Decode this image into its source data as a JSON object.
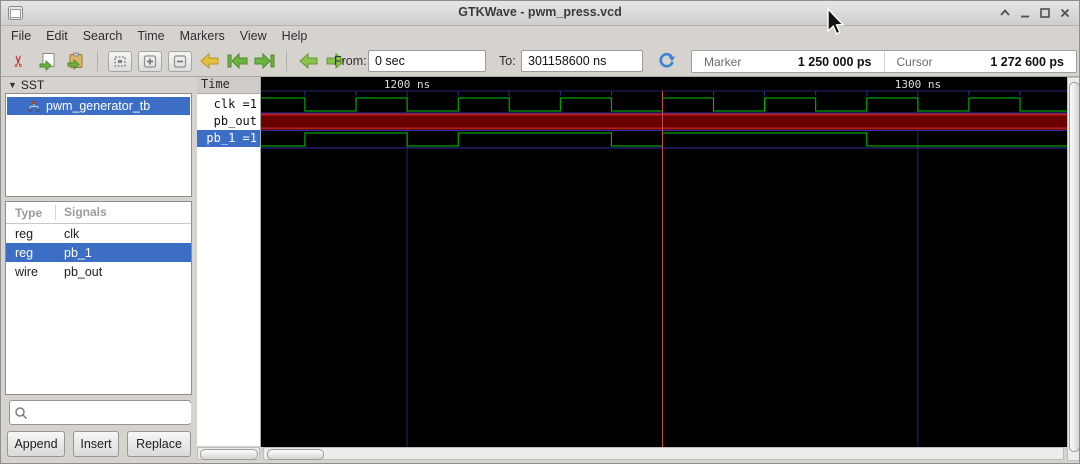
{
  "window": {
    "title": "GTKWave - pwm_press.vcd"
  },
  "menu": {
    "items": [
      "File",
      "Edit",
      "Search",
      "Time",
      "Markers",
      "View",
      "Help"
    ]
  },
  "toolbar": {
    "from_label": "From:",
    "from_value": "0 sec",
    "to_label": "To:",
    "to_value": "301158600 ns",
    "marker_label": "Marker",
    "marker_value": "1 250 000 ps",
    "cursor_label": "Cursor",
    "cursor_value": "1 272 600 ps"
  },
  "sst": {
    "header": "SST",
    "items": [
      {
        "label": "pwm_generator_tb",
        "selected": true
      }
    ]
  },
  "signals_table": {
    "col_type": "Type",
    "col_signals": "Signals",
    "rows": [
      {
        "type": "reg",
        "name": "clk"
      },
      {
        "type": "reg",
        "name": "pb_1"
      },
      {
        "type": "wire",
        "name": "pb_out"
      }
    ]
  },
  "search": {
    "placeholder": ""
  },
  "actions": {
    "append": "Append",
    "insert": "Insert",
    "replace": "Replace"
  },
  "names_panel": {
    "header": "Time",
    "rows": [
      {
        "label": "clk =1"
      },
      {
        "label": "pb_out =x"
      },
      {
        "label": "pb_1 =1"
      }
    ]
  },
  "chart_data": {
    "type": "digital-waveform",
    "time_unit": "ns",
    "visible_range_ns": [
      1171.4,
      1329.2
    ],
    "minor_tick_ns": 10,
    "ticks": [
      {
        "t": 1200,
        "label": "1200 ns"
      },
      {
        "t": 1300,
        "label": "1300 ns"
      }
    ],
    "marker_ns": 1250,
    "cursor_ns": 1272.6,
    "signals": [
      {
        "name": "clk",
        "value_at_marker": "1",
        "kind": "binary",
        "initial": 1,
        "edges_ns": [
          1180,
          1190,
          1200,
          1210,
          1220,
          1230,
          1240,
          1250,
          1260,
          1270,
          1280,
          1290,
          1300,
          1310,
          1320
        ]
      },
      {
        "name": "pb_out",
        "value_at_marker": "x",
        "kind": "x-state"
      },
      {
        "name": "pb_1",
        "value_at_marker": "1",
        "kind": "binary",
        "initial": 0,
        "edges_ns": [
          1180,
          1200,
          1210,
          1240,
          1250,
          1290
        ]
      }
    ],
    "colors": {
      "background": "#000000",
      "trace": "#00c800",
      "x_fill": "#6b0000",
      "x_border": "#b41c1c",
      "grid": "#26266a",
      "baseline": "#3030a0",
      "marker": "#c05050",
      "tick_text": "#dcdcdc"
    }
  }
}
